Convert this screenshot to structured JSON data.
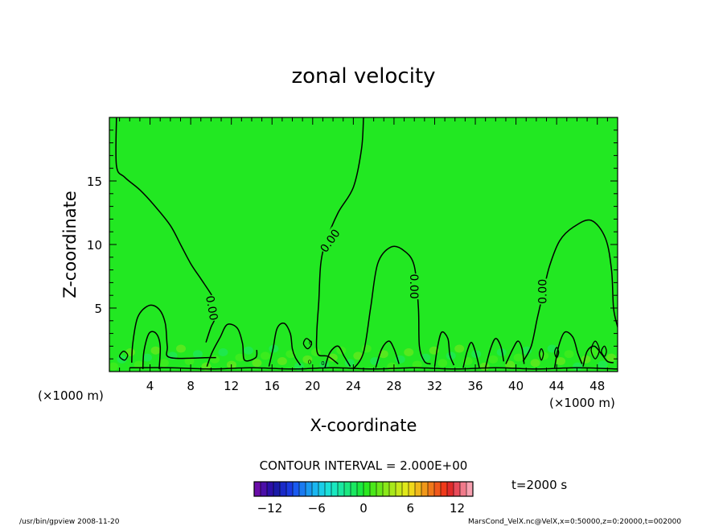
{
  "chart_data": {
    "type": "heatmap",
    "title": "zonal velocity",
    "xlabel": "X-coordinate",
    "ylabel": "Z-coordinate",
    "x_unit": "(×1000 m)",
    "y_unit": "(×1000 m)",
    "xlim": [
      0,
      50
    ],
    "ylim": [
      0,
      20
    ],
    "x_ticks": [
      "4",
      "8",
      "12",
      "16",
      "20",
      "24",
      "28",
      "32",
      "36",
      "40",
      "44",
      "48"
    ],
    "y_ticks": [
      "5",
      "10",
      "15"
    ],
    "contour_interval": "CONTOUR INTERVAL = 2.000E+00",
    "contour_labels": [
      {
        "text": "0.00",
        "x": 21.7,
        "y": 10.3,
        "angle": -55
      },
      {
        "text": "0.00",
        "x": 10.1,
        "y": 5.0,
        "angle": 80
      },
      {
        "text": "0.00",
        "x": 30.0,
        "y": 6.7,
        "angle": 90
      },
      {
        "text": "0.00",
        "x": 42.6,
        "y": 6.3,
        "angle": -90
      }
    ],
    "small_labels": [
      {
        "text": "0",
        "x": 19.8,
        "y": 2.3
      },
      {
        "text": "0",
        "x": 21.0,
        "y": 0.7
      },
      {
        "text": "0",
        "x": 19.7,
        "y": 0.8
      }
    ],
    "contours": [
      [
        [
          0.7,
          20
        ],
        [
          0.7,
          16.2
        ],
        [
          1.5,
          15.3
        ],
        [
          3.0,
          14.3
        ],
        [
          4.5,
          13.0
        ],
        [
          6.0,
          11.5
        ],
        [
          7.0,
          10.0
        ],
        [
          8.0,
          8.5
        ],
        [
          9.0,
          7.3
        ],
        [
          10.0,
          6.1
        ],
        [
          10.5,
          5.3
        ],
        [
          10.4,
          4.2
        ],
        [
          10.0,
          3.5
        ],
        [
          9.5,
          2.3
        ]
      ],
      [
        [
          25.0,
          20
        ],
        [
          24.8,
          17.5
        ],
        [
          24.0,
          14.5
        ],
        [
          22.5,
          12.5
        ],
        [
          21.3,
          10.2
        ],
        [
          20.8,
          8.5
        ],
        [
          20.6,
          5.5
        ],
        [
          20.4,
          3.0
        ],
        [
          20.5,
          1.4
        ],
        [
          21.5,
          1.2
        ],
        [
          22.5,
          0.6
        ]
      ],
      [
        [
          24.0,
          0.2
        ],
        [
          25.0,
          1.5
        ],
        [
          25.7,
          5.0
        ],
        [
          26.4,
          8.5
        ],
        [
          27.7,
          9.8
        ],
        [
          29.0,
          9.5
        ],
        [
          30.0,
          8.3
        ],
        [
          30.4,
          5.0
        ],
        [
          30.5,
          2.0
        ],
        [
          31.0,
          0.8
        ],
        [
          31.6,
          0.6
        ]
      ],
      [
        [
          50,
          3.5
        ],
        [
          49.6,
          5.0
        ],
        [
          49.4,
          8.0
        ],
        [
          48.8,
          10.5
        ],
        [
          47.4,
          11.9
        ],
        [
          45.7,
          11.4
        ],
        [
          44.3,
          10.3
        ],
        [
          43.3,
          8.3
        ],
        [
          42.7,
          6.3
        ],
        [
          42.1,
          4.2
        ],
        [
          41.5,
          2.0
        ],
        [
          40.7,
          0.8
        ]
      ],
      [
        [
          2.2,
          0.7
        ],
        [
          2.3,
          2.2
        ],
        [
          2.8,
          4.3
        ],
        [
          3.9,
          5.2
        ],
        [
          4.9,
          4.9
        ],
        [
          5.5,
          3.8
        ],
        [
          5.7,
          2.0
        ],
        [
          6.0,
          1.1
        ],
        [
          9.8,
          1.1
        ],
        [
          10.5,
          1.1
        ]
      ],
      [
        [
          3.3,
          0.2
        ],
        [
          3.4,
          1.6
        ],
        [
          3.9,
          3.0
        ],
        [
          4.6,
          3.0
        ],
        [
          5.0,
          2.0
        ],
        [
          4.9,
          0.2
        ]
      ],
      [
        [
          9.6,
          0.4
        ],
        [
          10.1,
          1.5
        ],
        [
          10.9,
          2.7
        ],
        [
          11.6,
          3.7
        ],
        [
          12.6,
          3.4
        ],
        [
          13.1,
          2.2
        ],
        [
          13.3,
          0.9
        ],
        [
          14.4,
          1.1
        ],
        [
          14.5,
          1.7
        ]
      ],
      [
        [
          15.7,
          0.4
        ],
        [
          16.1,
          1.8
        ],
        [
          16.5,
          3.4
        ],
        [
          17.2,
          3.8
        ],
        [
          17.8,
          3.0
        ],
        [
          18.0,
          1.8
        ],
        [
          18.3,
          1.1
        ],
        [
          18.8,
          0.5
        ]
      ],
      [
        [
          21.2,
          0.3
        ],
        [
          21.7,
          1.5
        ],
        [
          22.5,
          2.0
        ],
        [
          23.1,
          1.2
        ],
        [
          23.7,
          0.4
        ]
      ],
      [
        [
          26.2,
          0.3
        ],
        [
          26.8,
          1.8
        ],
        [
          27.5,
          2.4
        ],
        [
          28.0,
          1.8
        ],
        [
          28.5,
          0.6
        ]
      ],
      [
        [
          32.0,
          0.4
        ],
        [
          32.3,
          2.0
        ],
        [
          32.7,
          3.1
        ],
        [
          33.3,
          2.6
        ],
        [
          33.5,
          1.3
        ],
        [
          33.9,
          0.5
        ]
      ],
      [
        [
          34.8,
          0.3
        ],
        [
          35.2,
          1.6
        ],
        [
          35.6,
          2.3
        ],
        [
          36.0,
          1.6
        ],
        [
          36.4,
          0.3
        ]
      ],
      [
        [
          37.0,
          0.3
        ],
        [
          37.5,
          1.8
        ],
        [
          38.0,
          2.6
        ],
        [
          38.5,
          2.0
        ],
        [
          38.8,
          0.8
        ]
      ],
      [
        [
          39.0,
          0.6
        ],
        [
          39.7,
          1.8
        ],
        [
          40.2,
          2.4
        ],
        [
          40.6,
          1.8
        ],
        [
          40.8,
          0.6
        ]
      ],
      [
        [
          43.8,
          0.3
        ],
        [
          44.2,
          2.0
        ],
        [
          44.8,
          3.1
        ],
        [
          45.6,
          2.7
        ],
        [
          46.1,
          1.4
        ],
        [
          46.5,
          0.6
        ]
      ],
      [
        [
          46.6,
          0.4
        ],
        [
          47.0,
          1.6
        ],
        [
          47.7,
          2.0
        ],
        [
          48.4,
          1.4
        ],
        [
          49.0,
          0.8
        ],
        [
          49.6,
          0.7
        ]
      ],
      [
        [
          2.0,
          0.3
        ],
        [
          6.0,
          0.3
        ],
        [
          10.0,
          0.2
        ],
        [
          14.0,
          0.3
        ],
        [
          18.0,
          0.2
        ],
        [
          22.0,
          0.3
        ],
        [
          26.0,
          0.2
        ],
        [
          30.0,
          0.3
        ],
        [
          34.0,
          0.2
        ],
        [
          38.0,
          0.3
        ],
        [
          42.0,
          0.2
        ],
        [
          46.0,
          0.3
        ],
        [
          50.0,
          0.2
        ]
      ]
    ],
    "closed_contours": [
      [
        [
          1.4,
          1.6
        ],
        [
          1.8,
          1.3
        ],
        [
          1.5,
          0.9
        ],
        [
          1.0,
          1.2
        ]
      ],
      [
        [
          19.4,
          2.6
        ],
        [
          19.9,
          2.2
        ],
        [
          19.5,
          1.8
        ],
        [
          19.1,
          2.2
        ]
      ],
      [
        [
          42.3,
          1.4
        ],
        [
          42.5,
          0.9
        ],
        [
          42.7,
          1.4
        ],
        [
          42.5,
          1.8
        ]
      ],
      [
        [
          43.8,
          1.5
        ],
        [
          44.0,
          1.1
        ],
        [
          44.2,
          1.5
        ],
        [
          44.0,
          1.9
        ]
      ],
      [
        [
          47.8,
          2.4
        ],
        [
          48.2,
          1.7
        ],
        [
          47.8,
          1.0
        ],
        [
          47.4,
          1.7
        ]
      ],
      [
        [
          48.4,
          1.6
        ],
        [
          48.7,
          1.2
        ],
        [
          48.9,
          1.6
        ],
        [
          48.7,
          2.0
        ]
      ]
    ],
    "colorbar": {
      "ticks": [
        "−12",
        "−6",
        "0",
        "6",
        "12"
      ],
      "tick_values": [
        -12,
        -6,
        0,
        6,
        12
      ],
      "range": [
        -14,
        14
      ],
      "colors": [
        "#6a0da8",
        "#4b0fa8",
        "#2c10a8",
        "#1a1aa8",
        "#1a2ac8",
        "#1a3ae0",
        "#1a5af0",
        "#1a7af0",
        "#1a9af0",
        "#1ab6f0",
        "#1acde8",
        "#1ae0d8",
        "#1ae8c0",
        "#1ae8a0",
        "#1ae880",
        "#1ae860",
        "#1ae840",
        "#2ae820",
        "#4ae81a",
        "#6ae81a",
        "#8ae81a",
        "#a8e81a",
        "#c8e81a",
        "#e0e81a",
        "#f0d81a",
        "#f0b81a",
        "#f0981a",
        "#f0781a",
        "#f0581a",
        "#f03a1a",
        "#e02a2a",
        "#e84a5a",
        "#f07a8a",
        "#f8a0b0"
      ]
    },
    "time_label": "t=2000 s",
    "field_color": "#22e822",
    "bottom_blend_colors": [
      "#5af01a",
      "#1ae880",
      "#9ae81a"
    ]
  },
  "footer": {
    "left": "/usr/bin/gpview  2008-11-20",
    "right": "MarsCond_VelX.nc@VelX,x=0:50000,z=0:20000,t=002000"
  }
}
